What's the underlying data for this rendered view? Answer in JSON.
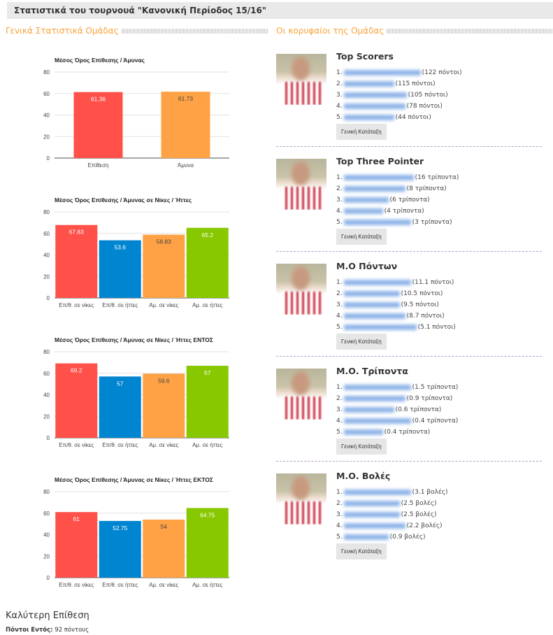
{
  "page_title": "Στατιστικά του τουρνουά \"Κανονική Περίοδος 15/16\"",
  "left_heading": "Γενικά Στατιστικά Ομάδας",
  "right_heading": "Οι κορυφαίοι της Ομάδας",
  "colors": {
    "red": "#ff5049",
    "blue": "#0085d1",
    "orange": "#ffa245",
    "green": "#87c800",
    "accent": "#f7a33a"
  },
  "chart_data": [
    {
      "type": "bar",
      "title": "Μέσος Όρος Επίθεσης / Άμυνας",
      "categories": [
        "Επίθεση",
        "Άμυνα"
      ],
      "values": [
        61.36,
        61.73
      ],
      "colors": [
        "#ff5049",
        "#ffa245"
      ],
      "ylim": [
        0,
        80
      ],
      "yticks": [
        0,
        20,
        40,
        60,
        80
      ]
    },
    {
      "type": "bar",
      "title": "Μέσος Όρος Επίθεσης / Άμυνας σε Νίκες / Ήττες",
      "categories": [
        "Επ/θ. σε νίκες",
        "Επ/θ. σε ήττες",
        "Αμ. σε νίκες",
        "Αμ. σε ήττες"
      ],
      "values": [
        67.83,
        53.6,
        58.83,
        65.2
      ],
      "colors": [
        "#ff5049",
        "#0085d1",
        "#ffa245",
        "#87c800"
      ],
      "ylim": [
        0,
        80
      ],
      "yticks": [
        0,
        20,
        40,
        60,
        80
      ]
    },
    {
      "type": "bar",
      "title": "Μέσος Όρος Επίθεσης / Άμυνας σε Νίκες / Ήττες ΕΝΤΟΣ",
      "categories": [
        "Επ/θ. σε νίκες",
        "Επ/θ. σε ήττες",
        "Αμ. σε νίκες",
        "Αμ. σε ήττες"
      ],
      "values": [
        69.2,
        57,
        59.6,
        67
      ],
      "colors": [
        "#ff5049",
        "#0085d1",
        "#ffa245",
        "#87c800"
      ],
      "ylim": [
        0,
        80
      ],
      "yticks": [
        0,
        20,
        40,
        60,
        80
      ]
    },
    {
      "type": "bar",
      "title": "Μέσος Όρος Επίθεσης / Άμυνας σε Νίκες / Ήττες ΕΚΤΟΣ",
      "categories": [
        "Επ/θ. σε νίκες",
        "Επ/θ. σε ήττες",
        "Αμ. σε νίκες",
        "Αμ. σε ήττες"
      ],
      "values": [
        61,
        52.75,
        54,
        64.75
      ],
      "colors": [
        "#ff5049",
        "#0085d1",
        "#ffa245",
        "#87c800"
      ],
      "ylim": [
        0,
        80
      ],
      "yticks": [
        0,
        20,
        40,
        60,
        80
      ]
    }
  ],
  "leaders": [
    {
      "title": "Top Scorers",
      "items": [
        "(122 πόντοι)",
        "(115 πόντοι)",
        "(105 πόντοι)",
        "(78 πόντοι)",
        "(44 πόντοι)"
      ]
    },
    {
      "title": "Top Three Pointer",
      "items": [
        "(16 τρίποντα)",
        "(8 τρίποντα)",
        "(6 τρίποντα)",
        "(4 τρίποντα)",
        "(3 τρίποντα)"
      ]
    },
    {
      "title": "Μ.Ο Πόντων",
      "items": [
        "(11.1 πόντοι)",
        "(10.5 πόντοι)",
        "(9.5 πόντοι)",
        "(8.7 πόντοι)",
        "(5.1 πόντοι)"
      ]
    },
    {
      "title": "Μ.Ο. Τρίποντα",
      "items": [
        "(1.5 τρίποντα)",
        "(0.9 τρίποντα)",
        "(0.6 τρίποντα)",
        "(0.4 τρίποντα)",
        "(0.4 τρίποντα)"
      ]
    },
    {
      "title": "Μ.Ο. Βολές",
      "items": [
        "(3.1 βολές)",
        "(2.5 βολές)",
        "(2.5 βολές)",
        "(2.2 βολές)",
        "(0.9 βολές)"
      ]
    }
  ],
  "ranking_button": "Γενική Κατάταξη",
  "best_attack": {
    "title": "Καλύτερη Επίθεση",
    "label": "Πόντοι Εντός:",
    "value": "92 πόντους"
  }
}
